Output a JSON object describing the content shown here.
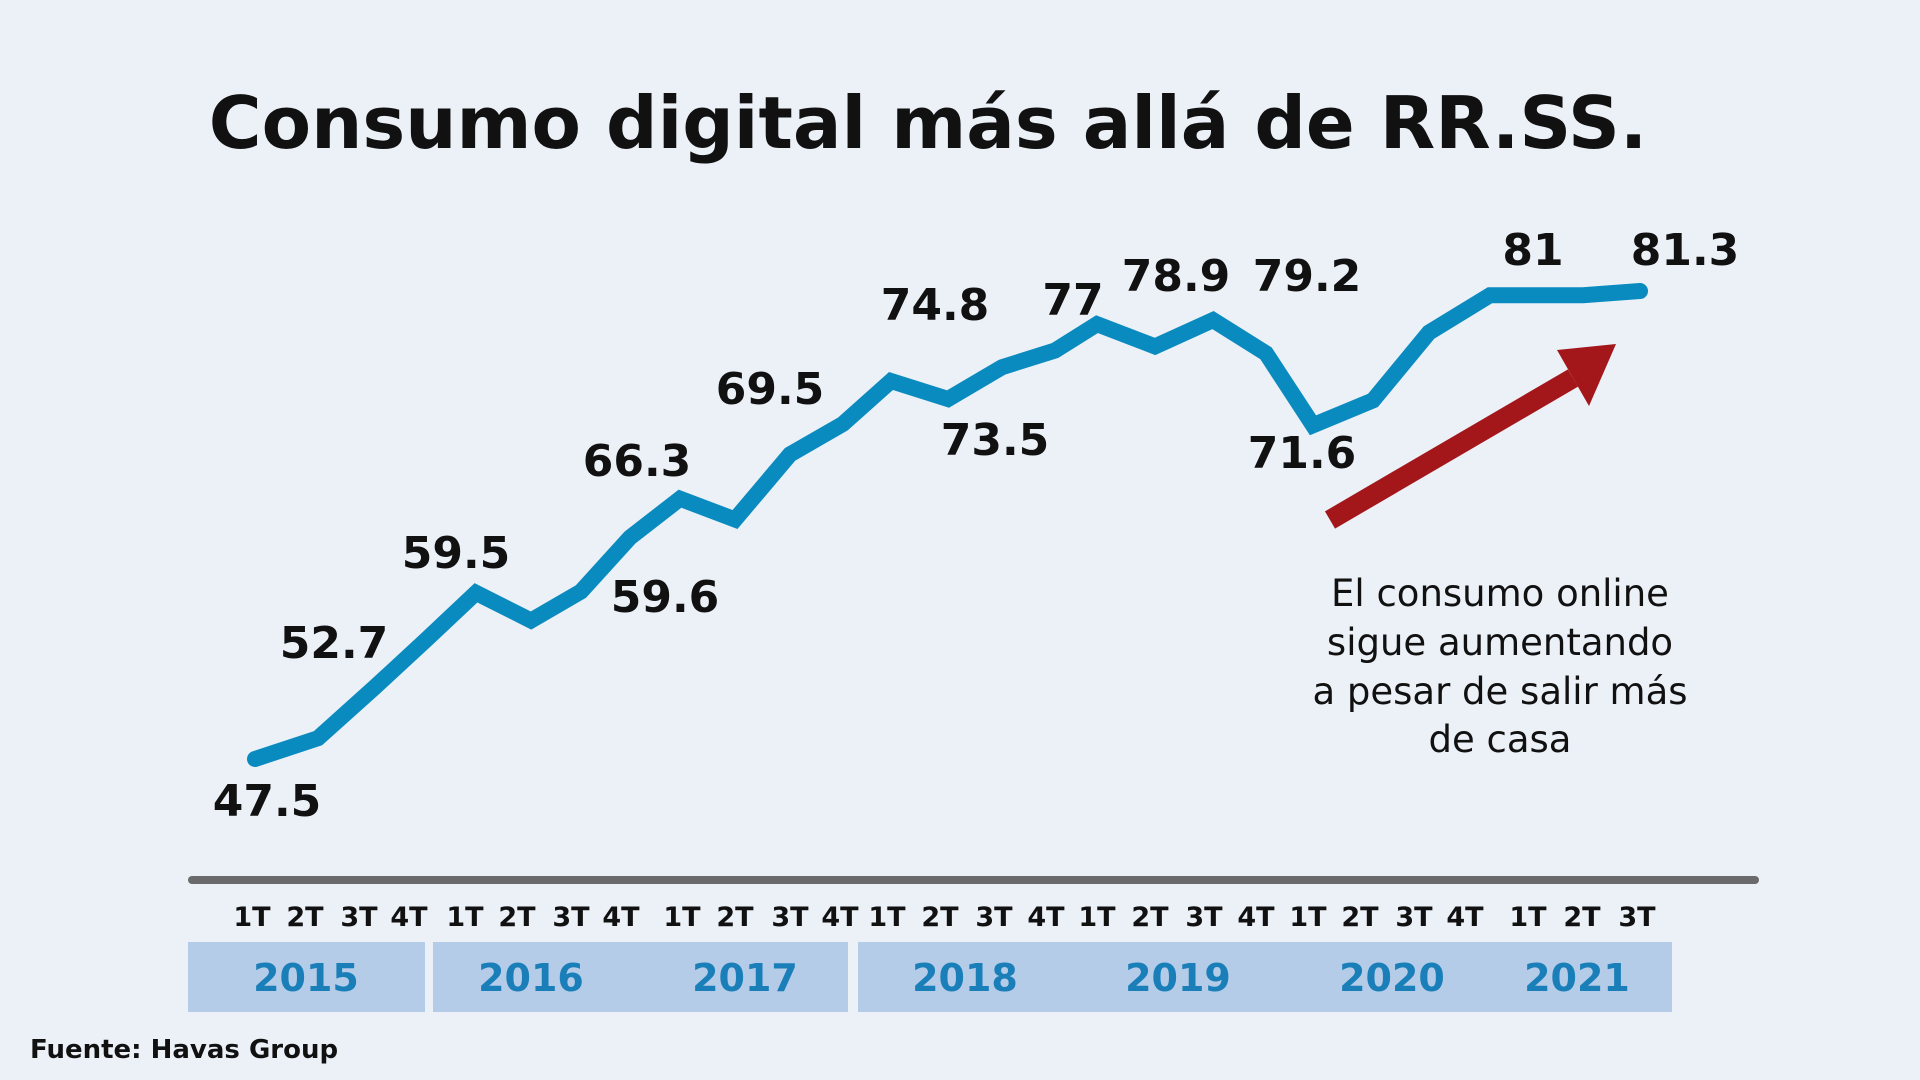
{
  "chart_data": {
    "type": "line",
    "title": "Consumo digital más allá de RR.SS.",
    "x": [
      "1T 2015",
      "2T 2015",
      "3T 2015",
      "4T 2015",
      "1T 2016",
      "2T 2016",
      "3T 2016",
      "4T 2016",
      "1T 2017",
      "2T 2017",
      "3T 2017",
      "4T 2017",
      "1T 2018",
      "2T 2018",
      "3T 2018",
      "4T 2018",
      "1T 2019",
      "2T 2019",
      "3T 2019",
      "4T 2019",
      "1T 2020",
      "2T 2020",
      "3T 2020",
      "4T 2020",
      "1T 2021",
      "2T 2021",
      "3T 2021"
    ],
    "quarters": [
      "1T",
      "2T",
      "3T",
      "4T",
      "1T",
      "2T",
      "3T",
      "4T",
      "1T",
      "2T",
      "3T",
      "4T",
      "1T",
      "2T",
      "3T",
      "4T",
      "1T",
      "2T",
      "3T",
      "4T",
      "1T",
      "2T",
      "3T",
      "4T",
      "1T",
      "2T",
      "3T"
    ],
    "years": [
      {
        "label": "2015",
        "start": 0,
        "end": 3
      },
      {
        "label": "2016",
        "start": 4,
        "end": 7
      },
      {
        "label": "2017",
        "start": 8,
        "end": 11
      },
      {
        "label": "2018",
        "start": 12,
        "end": 15
      },
      {
        "label": "2019",
        "start": 16,
        "end": 19
      },
      {
        "label": "2020",
        "start": 20,
        "end": 23
      },
      {
        "label": "2021",
        "start": 24,
        "end": 26
      }
    ],
    "series": [
      {
        "values": [
          47.5,
          49.0,
          52.7,
          56.1,
          59.5,
          57.5,
          59.6,
          63.5,
          66.3,
          64.8,
          69.5,
          71.7,
          74.8,
          73.5,
          75.8,
          77.0,
          78.9,
          77.3,
          79.2,
          76.8,
          71.6,
          73.4,
          78.3,
          81.0,
          81.0,
          81.0,
          81.3
        ],
        "color": "#0a8bc0"
      }
    ],
    "data_labels": [
      {
        "index": 0,
        "text": "47.5"
      },
      {
        "index": 2,
        "text": "52.7"
      },
      {
        "index": 4,
        "text": "59.5"
      },
      {
        "index": 6,
        "text": "59.6"
      },
      {
        "index": 8,
        "text": "66.3"
      },
      {
        "index": 10,
        "text": "69.5"
      },
      {
        "index": 12,
        "text": "74.8"
      },
      {
        "index": 13,
        "text": "73.5"
      },
      {
        "index": 15,
        "text": "77"
      },
      {
        "index": 16,
        "text": "78.9"
      },
      {
        "index": 18,
        "text": "79.2"
      },
      {
        "index": 20,
        "text": "71.6"
      },
      {
        "index": 24,
        "text": "81"
      },
      {
        "index": 26,
        "text": "81.3"
      }
    ],
    "ylim": [
      46,
      83
    ],
    "grid": false,
    "legend": "none"
  },
  "annotation": {
    "lines": [
      "El consumo online",
      "sigue aumentando",
      "a pesar de salir más",
      "de casa"
    ],
    "arrow_color": "#a3171b"
  },
  "source": "Fuente: Havas Group",
  "colors": {
    "background": "#ecf1f8",
    "line": "#0a8bc0",
    "axis": "#6a6a6a",
    "year_band": "#b5cce8",
    "year_text": "#1a7fb8"
  }
}
